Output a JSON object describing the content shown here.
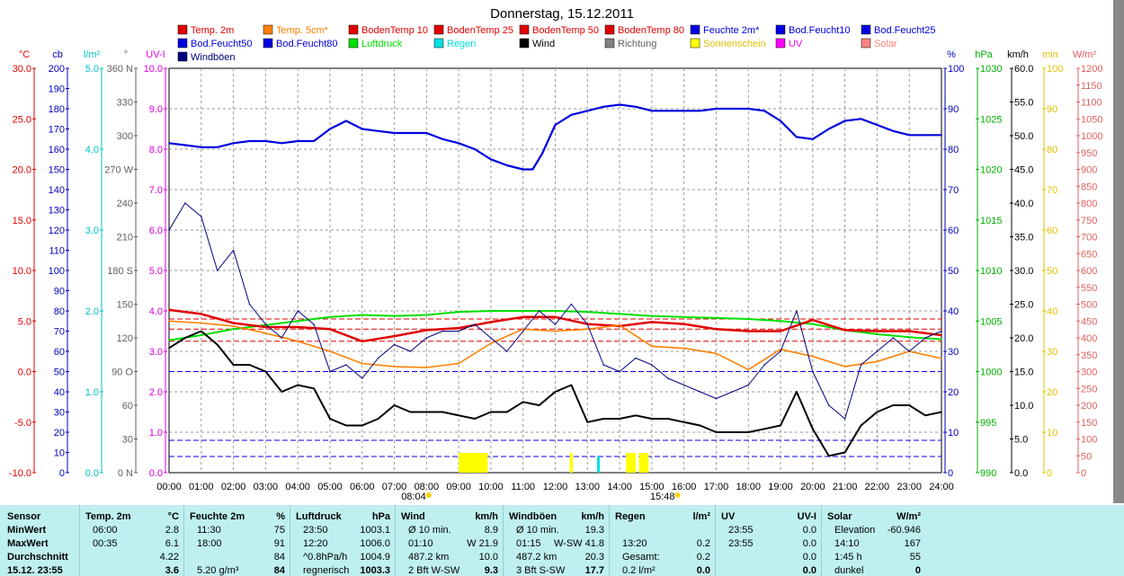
{
  "chart_data": {
    "type": "line",
    "title": "Donnerstag, 15.12.2011",
    "x": [
      "00:00",
      "01:00",
      "02:00",
      "03:00",
      "04:00",
      "05:00",
      "06:00",
      "07:00",
      "08:00",
      "09:00",
      "10:00",
      "11:00",
      "12:00",
      "13:00",
      "14:00",
      "15:00",
      "16:00",
      "17:00",
      "18:00",
      "19:00",
      "20:00",
      "21:00",
      "22:00",
      "23:00",
      "24:00"
    ],
    "sunrise": "08:04",
    "sunset": "15:48",
    "left_axes": [
      {
        "label": "°C",
        "color": "#e00000",
        "ticks": [
          "30.0",
          "25.0",
          "20.0",
          "15.0",
          "10.0",
          "5.0",
          "0.0",
          "-5.0",
          "-10.0"
        ]
      },
      {
        "label": "cb",
        "color": "#0000c0",
        "ticks": [
          "200",
          "190",
          "180",
          "170",
          "160",
          "150",
          "140",
          "130",
          "120",
          "110",
          "100",
          "90",
          "80",
          "70",
          "60",
          "50",
          "40",
          "30",
          "20",
          "10",
          "0"
        ]
      },
      {
        "label": "l/m²",
        "color": "#00c0c0",
        "ticks": [
          "5.0",
          "4.0",
          "3.0",
          "2.0",
          "1.0",
          "0.0"
        ]
      },
      {
        "label": "°",
        "color": "#606060",
        "ticks": [
          "360 N",
          "330",
          "300",
          "270 W",
          "240",
          "210",
          "180 S",
          "150",
          "120",
          "90 O",
          "60",
          "30",
          "0 N"
        ]
      },
      {
        "label": "UV-I",
        "color": "#e000e0",
        "ticks": [
          "10.0",
          "9.0",
          "8.0",
          "7.0",
          "6.0",
          "5.0",
          "4.0",
          "3.0",
          "2.0",
          "1.0",
          "0.0"
        ]
      }
    ],
    "right_axes": [
      {
        "label": "%",
        "color": "#0000c0",
        "ticks": [
          "100",
          "90",
          "80",
          "70",
          "60",
          "50",
          "40",
          "30",
          "20",
          "10",
          "0"
        ]
      },
      {
        "label": "hPa",
        "color": "#00b000",
        "ticks": [
          "1030",
          "1025",
          "1020",
          "1015",
          "1010",
          "1005",
          "1000",
          "995",
          "990"
        ]
      },
      {
        "label": "km/h",
        "color": "#000000",
        "ticks": [
          "60.0",
          "55.0",
          "50.0",
          "45.0",
          "40.0",
          "35.0",
          "30.0",
          "25.0",
          "20.0",
          "15.0",
          "10.0",
          "5.0",
          "0.0"
        ]
      },
      {
        "label": "min",
        "color": "#e0c000",
        "ticks": [
          "100",
          "90",
          "80",
          "70",
          "60",
          "50",
          "40",
          "30",
          "20",
          "10",
          "0"
        ]
      },
      {
        "label": "W/m²",
        "color": "#e06060",
        "ticks": [
          "1200",
          "1150",
          "1100",
          "1050",
          "1000",
          "950",
          "900",
          "850",
          "800",
          "750",
          "700",
          "650",
          "600",
          "550",
          "500",
          "450",
          "400",
          "350",
          "300",
          "250",
          "200",
          "150",
          "100",
          "50",
          "0"
        ]
      }
    ],
    "legend": [
      {
        "name": "Temp. 2m",
        "color": "#e00000"
      },
      {
        "name": "Temp. 5cm*",
        "color": "#ff8000"
      },
      {
        "name": "BodenTemp 10",
        "color": "#e00000"
      },
      {
        "name": "BodenTemp 25",
        "color": "#e00000"
      },
      {
        "name": "BodenTemp 50",
        "color": "#e00000"
      },
      {
        "name": "BodenTemp 80",
        "color": "#e00000"
      },
      {
        "name": "Feuchte 2m*",
        "color": "#0000e0"
      },
      {
        "name": "Bod.Feucht10",
        "color": "#0000e0"
      },
      {
        "name": "Bod.Feucht25",
        "color": "#0000e0"
      },
      {
        "name": "Bod.Feucht50",
        "color": "#0000e0"
      },
      {
        "name": "Bod.Feucht80",
        "color": "#0000e0"
      },
      {
        "name": "Luftdruck",
        "color": "#00e000"
      },
      {
        "name": "Regen",
        "color": "#00e0e0"
      },
      {
        "name": "Wind",
        "color": "#000000"
      },
      {
        "name": "Richtung",
        "color": "#808080"
      },
      {
        "name": "Sonnenschein",
        "color": "#ffff00"
      },
      {
        "name": "UV",
        "color": "#ff00ff"
      },
      {
        "name": "Solar",
        "color": "#ff8080"
      },
      {
        "name": "Windböen",
        "color": "#000080"
      }
    ],
    "series": [
      {
        "name": "Feuchte 2m*",
        "axis": "%",
        "x": [
          0,
          0.5,
          1,
          1.5,
          2,
          2.5,
          3,
          3.5,
          4,
          4.5,
          5,
          5.5,
          6,
          6.5,
          7,
          7.5,
          8,
          8.5,
          9,
          9.5,
          10,
          10.5,
          11,
          11.3,
          11.6,
          12,
          12.5,
          13,
          13.5,
          14,
          14.5,
          15,
          15.5,
          16,
          16.5,
          17,
          17.5,
          18,
          18.5,
          19,
          19.5,
          20,
          20.5,
          21,
          21.5,
          22,
          22.5,
          23,
          23.5,
          24
        ],
        "values": [
          81.5,
          81,
          80.5,
          80.5,
          81.5,
          82,
          82,
          81.5,
          82,
          82,
          85,
          87,
          85,
          84.5,
          84,
          84,
          84,
          82.5,
          81.5,
          80,
          77.5,
          76,
          75,
          75,
          79,
          86,
          88.5,
          89.5,
          90.5,
          91,
          90.5,
          89.5,
          89.5,
          89.5,
          89.5,
          90,
          90,
          90,
          89.5,
          87,
          83,
          82.5,
          85,
          87,
          87.5,
          86,
          84.5,
          83.5,
          83.5,
          83.5
        ]
      },
      {
        "name": "Luftdruck",
        "axis": "hPa",
        "x": [
          0,
          1,
          2,
          3,
          4,
          5,
          6,
          7,
          8,
          9,
          10,
          11,
          12,
          13,
          14,
          15,
          16,
          17,
          18,
          19,
          20,
          21,
          22,
          23,
          24
        ],
        "values": [
          1003.1,
          1003.6,
          1004.2,
          1004.6,
          1005.0,
          1005.4,
          1005.6,
          1005.5,
          1005.6,
          1005.9,
          1006.0,
          1006.0,
          1006.0,
          1005.9,
          1005.7,
          1005.5,
          1005.4,
          1005.3,
          1005.2,
          1005.0,
          1004.7,
          1004.1,
          1003.7,
          1003.4,
          1003.2
        ]
      },
      {
        "name": "Temp. 2m",
        "axis": "°C",
        "x": [
          0,
          1,
          2,
          3,
          4,
          5,
          6,
          7,
          8,
          9,
          10,
          11,
          12,
          13,
          14,
          15,
          16,
          17,
          18,
          19,
          20,
          21,
          22,
          23,
          24
        ],
        "values": [
          6.1,
          5.7,
          4.8,
          4.4,
          4.4,
          4.2,
          3.0,
          3.5,
          4.1,
          4.3,
          4.9,
          5.4,
          5.4,
          4.7,
          4.5,
          4.9,
          4.7,
          4.2,
          4.0,
          4.0,
          5.1,
          4.1,
          4.0,
          4.0,
          3.6
        ]
      },
      {
        "name": "Temp. 5cm*",
        "axis": "°C",
        "x": [
          0,
          1,
          2,
          3,
          4,
          5,
          6,
          7,
          8,
          9,
          10,
          11,
          12,
          13,
          14,
          15,
          16,
          17,
          18,
          19,
          20,
          21,
          22,
          23,
          24
        ],
        "values": [
          5.0,
          4.8,
          4.5,
          3.8,
          3.0,
          2.0,
          0.8,
          0.5,
          0.4,
          0.8,
          2.8,
          4.2,
          4.0,
          4.2,
          4.6,
          2.5,
          2.3,
          1.8,
          0.2,
          2.2,
          1.5,
          0.5,
          1.0,
          2.0,
          1.3
        ]
      },
      {
        "name": "Wind",
        "axis": "km/h",
        "x": [
          0,
          0.5,
          1,
          1.5,
          2,
          2.5,
          3,
          3.5,
          4,
          4.5,
          5,
          5.5,
          6,
          6.5,
          7,
          7.5,
          8,
          8.5,
          9,
          9.5,
          10,
          10.5,
          11,
          11.5,
          12,
          12.5,
          13,
          13.5,
          14,
          14.5,
          15,
          15.5,
          16,
          16.5,
          17,
          17.5,
          18,
          18.5,
          19,
          19.5,
          20,
          20.5,
          21,
          21.5,
          22,
          22.5,
          23,
          23.5,
          24
        ],
        "values": [
          18.5,
          20,
          21,
          19,
          16,
          16,
          15,
          12,
          13,
          12.5,
          8,
          7,
          7,
          8,
          10,
          9,
          9,
          9,
          8.5,
          8,
          9,
          9,
          10.5,
          10,
          12,
          13,
          7.5,
          8,
          8,
          8.5,
          8,
          8,
          7.5,
          7,
          6,
          6,
          6,
          6.5,
          7,
          12,
          6.5,
          2.5,
          3,
          7,
          9,
          10,
          10,
          8.5,
          9
        ]
      },
      {
        "name": "Windböen",
        "axis": "km/h",
        "x": [
          0,
          0.5,
          1,
          1.5,
          2,
          2.5,
          3,
          3.5,
          4,
          4.5,
          5,
          5.5,
          6,
          6.5,
          7,
          7.5,
          8,
          8.5,
          9,
          9.5,
          10,
          10.5,
          11,
          11.5,
          12,
          12.5,
          13,
          13.5,
          14,
          14.5,
          15,
          15.5,
          16,
          16.5,
          17,
          17.5,
          18,
          18.5,
          19,
          19.5,
          20,
          20.5,
          21,
          21.5,
          22,
          22.5,
          23,
          23.5,
          24
        ],
        "values": [
          36,
          40,
          38,
          30,
          33,
          25,
          22,
          20,
          24,
          22,
          15,
          16,
          14,
          17,
          19,
          18,
          20,
          21,
          21,
          22,
          20,
          18,
          21,
          24,
          22,
          25,
          22,
          16,
          15,
          17,
          16,
          14,
          13,
          12,
          11,
          12,
          13,
          16,
          18,
          24,
          15,
          10,
          8,
          16,
          18,
          20,
          18,
          20,
          21
        ]
      }
    ]
  },
  "summary": {
    "headers": {
      "sensor": "Sensor",
      "temp": "Temp. 2m",
      "temp_unit": "°C",
      "hum": "Feuchte 2m",
      "hum_unit": "%",
      "press": "Luftdruck",
      "press_unit": "hPa",
      "wind": "Wind",
      "wind_unit": "km/h",
      "gust": "Windböen",
      "gust_unit": "km/h",
      "rain": "Regen",
      "rain_unit": "l/m²",
      "uv": "UV",
      "uv_unit": "UV-I",
      "solar": "Solar",
      "solar_unit": "W/m²"
    },
    "rows": [
      {
        "label": "MinWert",
        "temp_t": "06:00",
        "temp_v": "2.8",
        "hum_t": "11:30",
        "hum_v": "75",
        "press_t": "23:50",
        "press_v": "1003.1",
        "wind_t": "Ø 10 min.",
        "wind_v": "8.9",
        "gust_t": "Ø 10 min.",
        "gust_v": "19.3",
        "rain_t": "",
        "rain_v": "",
        "uv_t": "23:55",
        "uv_v": "0.0",
        "solar_t": "Elevation",
        "solar_v": "-60.946"
      },
      {
        "label": "MaxWert",
        "temp_t": "00:35",
        "temp_v": "6.1",
        "hum_t": "18:00",
        "hum_v": "91",
        "press_t": "12:20",
        "press_v": "1006.0",
        "wind_t": "01:10",
        "wind_v": "W 21.9",
        "gust_t": "01:15",
        "gust_v": "W-SW 41.8",
        "rain_t": "13:20",
        "rain_v": "0.2",
        "uv_t": "23:55",
        "uv_v": "0.0",
        "solar_t": "14:10",
        "solar_v": "167"
      },
      {
        "label": "Durchschnitt",
        "temp_t": "",
        "temp_v": "4.22",
        "hum_t": "",
        "hum_v": "84",
        "press_t": "^0.8hPa/h",
        "press_v": "1004.9",
        "wind_t": "487.2 km",
        "wind_v": "10.0",
        "gust_t": "487.2 km",
        "gust_v": "20.3",
        "rain_t": "Gesamt:",
        "rain_v": "0.2",
        "uv_t": "",
        "uv_v": "0.0",
        "solar_t": "1:45 h",
        "solar_v": "55"
      },
      {
        "label": "15.12. 23:55",
        "temp_t": "",
        "temp_v": "3.6",
        "hum_t": "5.20 g/m³",
        "hum_v": "84",
        "press_t": "regnerisch",
        "press_v": "1003.3",
        "wind_t": "2 Bft W-SW",
        "wind_v": "9.3",
        "gust_t": "3 Bft S-SW",
        "gust_v": "17.7",
        "rain_t": "0.2 l/m²",
        "rain_v": "0.0",
        "uv_t": "",
        "uv_v": "0.0",
        "solar_t": "dunkel",
        "solar_v": "0"
      }
    ]
  }
}
